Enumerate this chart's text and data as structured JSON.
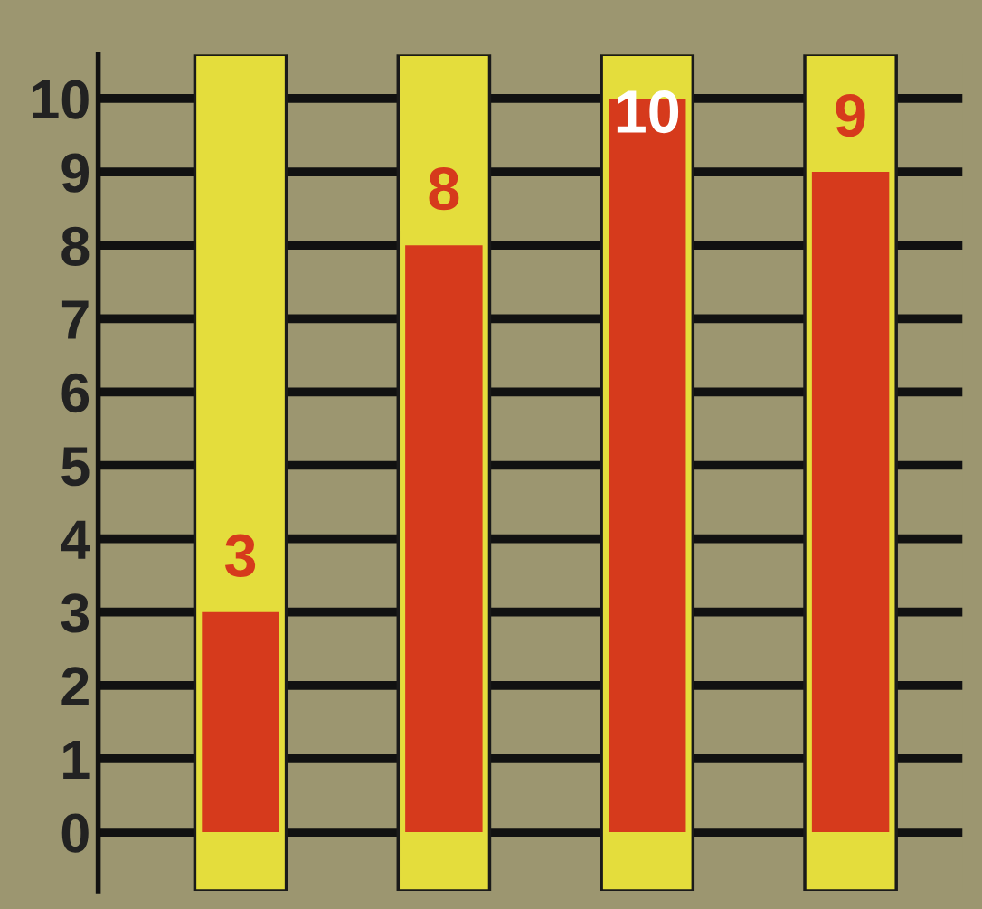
{
  "chart_data": {
    "type": "bar",
    "categories": [
      null,
      null,
      null,
      null
    ],
    "values": [
      3,
      8,
      10,
      9
    ],
    "color": "#d63a1c",
    "ylim": [
      -0.8,
      10.6
    ],
    "yticks": [
      0,
      1,
      2,
      3,
      4,
      5,
      6,
      7,
      8,
      9,
      10
    ],
    "grid": "y",
    "data_labels": true
  }
}
